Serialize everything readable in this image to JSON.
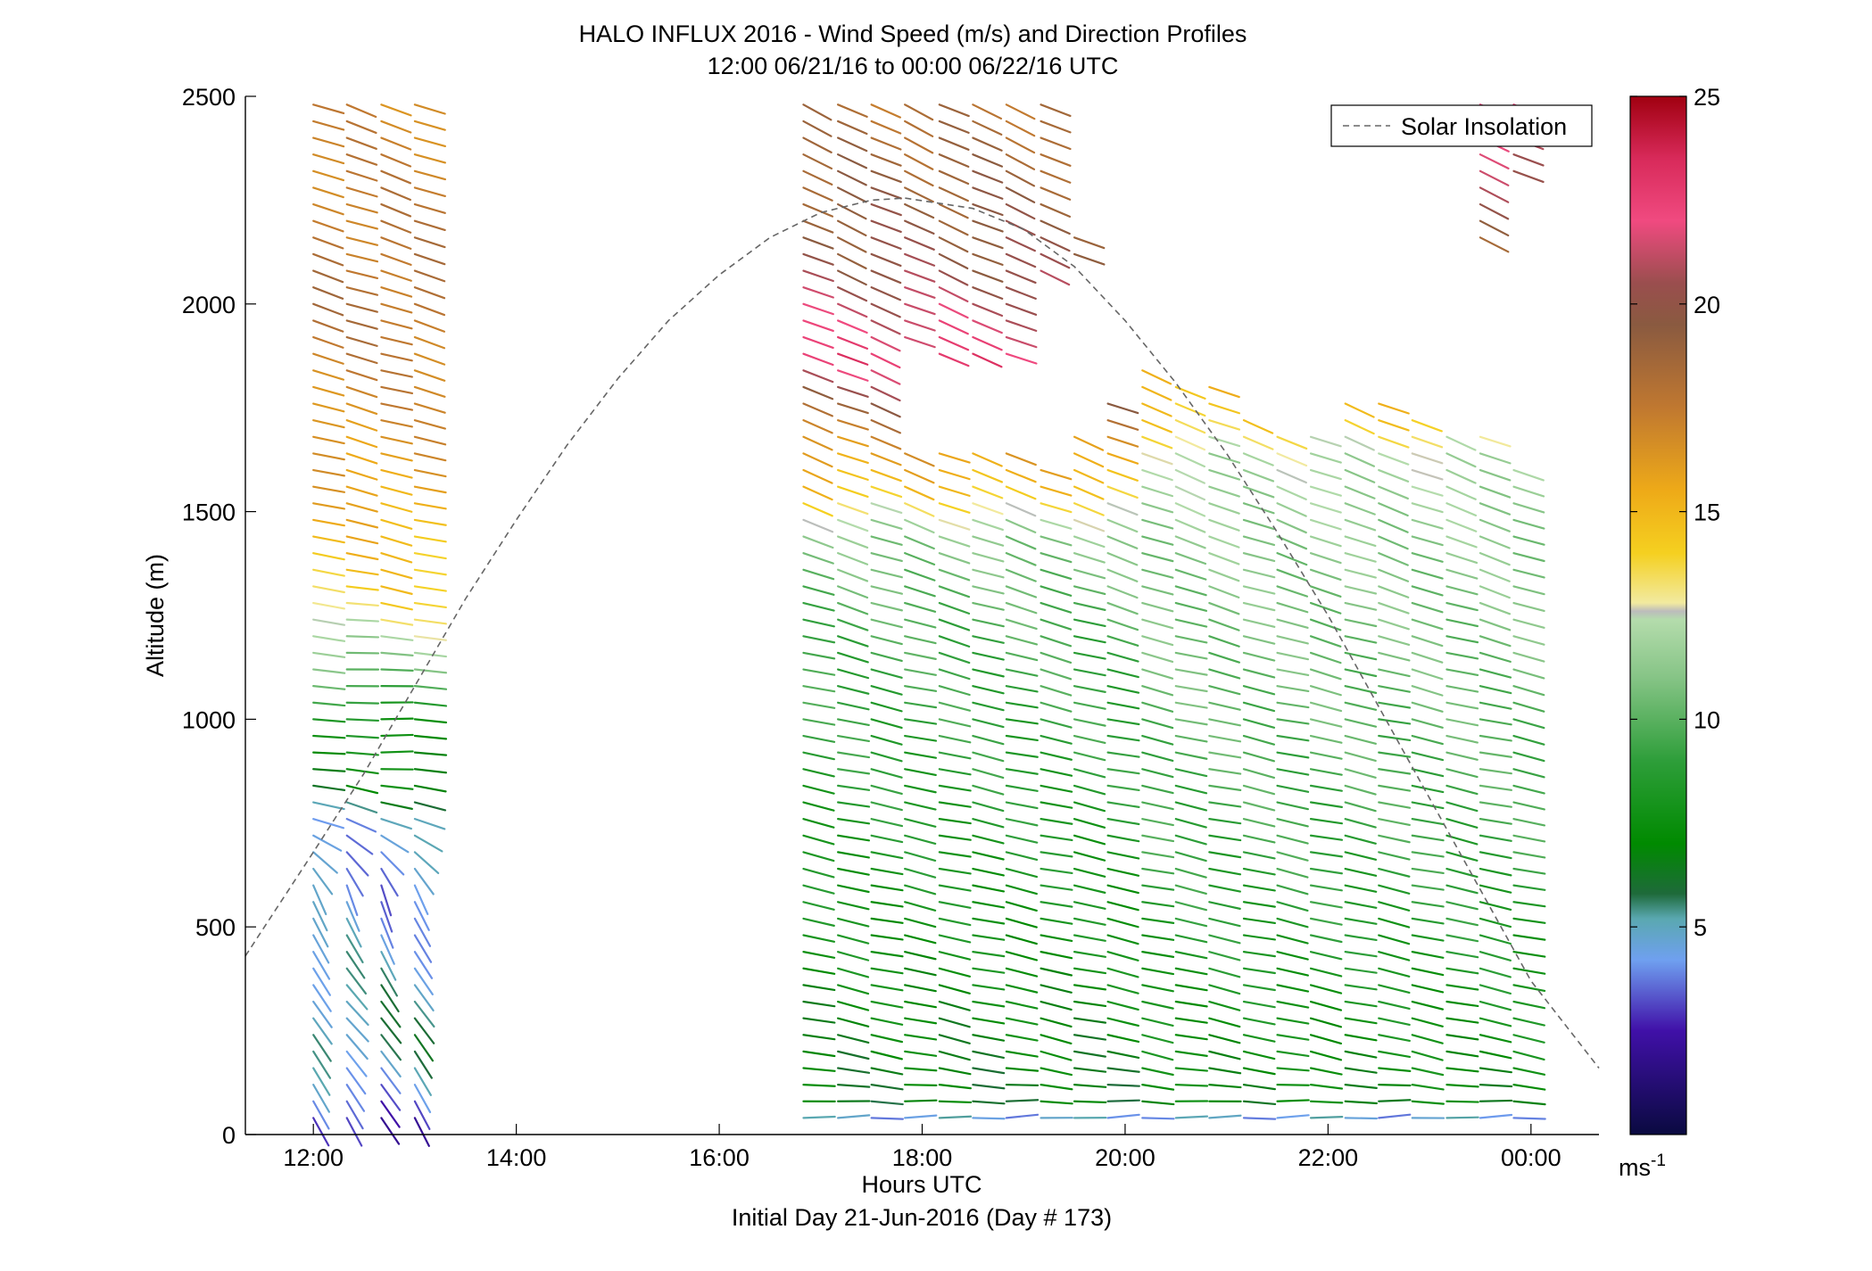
{
  "chart_data": {
    "type": "wind-profile",
    "title": "HALO INFLUX 2016 - Wind Speed (m/s) and Direction Profiles",
    "subtitle": "12:00 06/21/16 to 00:00 06/22/16  UTC",
    "xlabel": "Hours UTC",
    "xlabel2": "Initial Day 21-Jun-2016 (Day # 173)",
    "ylabel": "Altitude (m)",
    "xlim": [
      11.33,
      24.67
    ],
    "ylim": [
      0,
      2500
    ],
    "x_ticks": [
      {
        "value": 12,
        "label": "12:00"
      },
      {
        "value": 14,
        "label": "14:00"
      },
      {
        "value": 16,
        "label": "16:00"
      },
      {
        "value": 18,
        "label": "18:00"
      },
      {
        "value": 20,
        "label": "20:00"
      },
      {
        "value": 22,
        "label": "22:00"
      },
      {
        "value": 24,
        "label": "00:00"
      }
    ],
    "y_ticks": [
      {
        "value": 0,
        "label": "0"
      },
      {
        "value": 500,
        "label": "500"
      },
      {
        "value": 1000,
        "label": "1000"
      },
      {
        "value": 1500,
        "label": "1500"
      },
      {
        "value": 2000,
        "label": "2000"
      },
      {
        "value": 2500,
        "label": "2500"
      }
    ],
    "colorbar": {
      "min": 0,
      "max": 25,
      "ticks": [
        {
          "value": 5,
          "label": "5"
        },
        {
          "value": 10,
          "label": "10"
        },
        {
          "value": 15,
          "label": "15"
        },
        {
          "value": 20,
          "label": "20"
        },
        {
          "value": 25,
          "label": "25"
        }
      ],
      "unit_label": "ms",
      "unit_exponent": "-1",
      "color_stops": [
        {
          "value": 0,
          "color": "#0a0a40"
        },
        {
          "value": 2.5,
          "color": "#4010a8"
        },
        {
          "value": 4.2,
          "color": "#6fa0f0"
        },
        {
          "value": 5.2,
          "color": "#5aa8b0"
        },
        {
          "value": 5.8,
          "color": "#1e6a3a"
        },
        {
          "value": 7,
          "color": "#008a00"
        },
        {
          "value": 9,
          "color": "#2e9e3a"
        },
        {
          "value": 11,
          "color": "#86c486"
        },
        {
          "value": 12.4,
          "color": "#b4dcac"
        },
        {
          "value": 12.6,
          "color": "#bcbcbc"
        },
        {
          "value": 12.8,
          "color": "#f2eaa0"
        },
        {
          "value": 14,
          "color": "#f5d020"
        },
        {
          "value": 15.5,
          "color": "#eeaa18"
        },
        {
          "value": 17.5,
          "color": "#c07830"
        },
        {
          "value": 19.5,
          "color": "#8a5a40"
        },
        {
          "value": 20.5,
          "color": "#9a4e4e"
        },
        {
          "value": 22,
          "color": "#f04a80"
        },
        {
          "value": 23.5,
          "color": "#d82a5a"
        },
        {
          "value": 25,
          "color": "#a00010"
        }
      ]
    },
    "legend": {
      "label": "Solar Insolation",
      "position": "top-right"
    },
    "solar_insolation": {
      "style": "dashed",
      "color": "#666666",
      "points": [
        {
          "time": 11.33,
          "alt": 430
        },
        {
          "time": 12.0,
          "alt": 680
        },
        {
          "time": 12.5,
          "alt": 870
        },
        {
          "time": 13.0,
          "alt": 1080
        },
        {
          "time": 13.5,
          "alt": 1290
        },
        {
          "time": 14.0,
          "alt": 1480
        },
        {
          "time": 14.5,
          "alt": 1660
        },
        {
          "time": 15.0,
          "alt": 1820
        },
        {
          "time": 15.5,
          "alt": 1960
        },
        {
          "time": 16.0,
          "alt": 2070
        },
        {
          "time": 16.5,
          "alt": 2160
        },
        {
          "time": 17.0,
          "alt": 2220
        },
        {
          "time": 17.5,
          "alt": 2250
        },
        {
          "time": 17.83,
          "alt": 2255
        },
        {
          "time": 18.5,
          "alt": 2230
        },
        {
          "time": 19.0,
          "alt": 2180
        },
        {
          "time": 19.5,
          "alt": 2090
        },
        {
          "time": 20.0,
          "alt": 1960
        },
        {
          "time": 20.5,
          "alt": 1810
        },
        {
          "time": 21.0,
          "alt": 1640
        },
        {
          "time": 21.5,
          "alt": 1450
        },
        {
          "time": 22.0,
          "alt": 1250
        },
        {
          "time": 22.5,
          "alt": 1030
        },
        {
          "time": 23.0,
          "alt": 810
        },
        {
          "time": 23.5,
          "alt": 590
        },
        {
          "time": 24.0,
          "alt": 370
        },
        {
          "time": 24.67,
          "alt": 160
        }
      ]
    },
    "vector_length_hours": 0.31,
    "profiles": {
      "times": [
        12.0,
        12.33,
        12.67,
        13.0,
        16.83,
        17.17,
        17.5,
        17.83,
        18.17,
        18.5,
        18.83,
        19.17,
        19.5,
        19.83,
        20.17,
        20.5,
        20.83,
        21.17,
        21.5,
        21.83,
        22.17,
        22.5,
        22.83,
        23.17,
        23.5,
        23.83
      ],
      "altitudes": [
        40,
        80,
        120,
        160,
        200,
        240,
        280,
        320,
        360,
        400,
        440,
        480,
        520,
        560,
        600,
        640,
        680,
        720,
        760,
        800,
        840,
        880,
        920,
        960,
        1000,
        1040,
        1080,
        1120,
        1160,
        1200,
        1240,
        1280,
        1320,
        1360,
        1400,
        1440,
        1480,
        1520,
        1560,
        1600,
        1640,
        1680,
        1720,
        1760,
        1800,
        1840,
        1880,
        1920,
        1960,
        2000,
        2040,
        2080,
        2120,
        2160,
        2200,
        2240,
        2280,
        2320,
        2360,
        2400,
        2440,
        2480
      ],
      "available_ranges": [
        [
          [
            40,
            2500
          ]
        ],
        [
          [
            40,
            2500
          ]
        ],
        [
          [
            40,
            2500
          ]
        ],
        [
          [
            40,
            2500
          ]
        ],
        [
          [
            40,
            2500
          ]
        ],
        [
          [
            40,
            2500
          ]
        ],
        [
          [
            40,
            2500
          ]
        ],
        [
          [
            40,
            1660
          ],
          [
            1920,
            2480
          ]
        ],
        [
          [
            40,
            1660
          ],
          [
            1880,
            2480
          ]
        ],
        [
          [
            40,
            1640
          ],
          [
            1880,
            2480
          ]
        ],
        [
          [
            40,
            1640
          ],
          [
            1880,
            2480
          ]
        ],
        [
          [
            40,
            1600
          ],
          [
            2080,
            2480
          ]
        ],
        [
          [
            40,
            1680
          ],
          [
            2120,
            2160
          ]
        ],
        [
          [
            40,
            1780
          ]
        ],
        [
          [
            40,
            1860
          ]
        ],
        [
          [
            40,
            1800
          ]
        ],
        [
          [
            40,
            1800
          ]
        ],
        [
          [
            40,
            1720
          ]
        ],
        [
          [
            40,
            1700
          ]
        ],
        [
          [
            40,
            1680
          ]
        ],
        [
          [
            40,
            1780
          ]
        ],
        [
          [
            40,
            1760
          ]
        ],
        [
          [
            40,
            1720
          ]
        ],
        [
          [
            40,
            1700
          ]
        ],
        [
          [
            40,
            1700
          ],
          [
            2160,
            2500
          ]
        ],
        [
          [
            40,
            1620
          ],
          [
            2320,
            2500
          ]
        ]
      ],
      "speed_by_altitude": {
        "morning": [
          {
            "alt": 40,
            "speed": 2.5
          },
          {
            "alt": 120,
            "speed": 4.0
          },
          {
            "alt": 240,
            "speed": 5.5
          },
          {
            "alt": 400,
            "speed": 5.0
          },
          {
            "alt": 600,
            "speed": 4.0
          },
          {
            "alt": 760,
            "speed": 4.5
          },
          {
            "alt": 840,
            "speed": 7.0
          },
          {
            "alt": 1000,
            "speed": 8.0
          },
          {
            "alt": 1200,
            "speed": 12.0
          },
          {
            "alt": 1300,
            "speed": 14.0
          },
          {
            "alt": 1600,
            "speed": 16.0
          },
          {
            "alt": 2000,
            "speed": 18.0
          },
          {
            "alt": 2500,
            "speed": 17.0
          }
        ],
        "afternoon": [
          {
            "alt": 40,
            "speed": 4.5
          },
          {
            "alt": 80,
            "speed": 6.5
          },
          {
            "alt": 400,
            "speed": 7.5
          },
          {
            "alt": 800,
            "speed": 8.5
          },
          {
            "alt": 1200,
            "speed": 9.5
          },
          {
            "alt": 1450,
            "speed": 11.0
          },
          {
            "alt": 1560,
            "speed": 14.5
          },
          {
            "alt": 1700,
            "speed": 17.0
          },
          {
            "alt": 1880,
            "speed": 22.5
          },
          {
            "alt": 2100,
            "speed": 20.0
          },
          {
            "alt": 2500,
            "speed": 18.0
          }
        ],
        "evening": [
          {
            "alt": 40,
            "speed": 4.5
          },
          {
            "alt": 80,
            "speed": 7.0
          },
          {
            "alt": 500,
            "speed": 8.5
          },
          {
            "alt": 1000,
            "speed": 10.0
          },
          {
            "alt": 1400,
            "speed": 11.0
          },
          {
            "alt": 1640,
            "speed": 12.0
          },
          {
            "alt": 1720,
            "speed": 14.0
          },
          {
            "alt": 1860,
            "speed": 16.0
          },
          {
            "alt": 2200,
            "speed": 19.0
          },
          {
            "alt": 2500,
            "speed": 23.0
          }
        ]
      },
      "direction_by_altitude": {
        "morning": [
          {
            "alt": 40,
            "dir": 330
          },
          {
            "alt": 300,
            "dir": 320
          },
          {
            "alt": 600,
            "dir": 340
          },
          {
            "alt": 760,
            "dir": 290
          },
          {
            "alt": 900,
            "dir": 272
          },
          {
            "alt": 1100,
            "dir": 272
          },
          {
            "alt": 1400,
            "dir": 283
          },
          {
            "alt": 2500,
            "dir": 290
          }
        ],
        "daytime": [
          {
            "alt": 40,
            "dir": 268
          },
          {
            "alt": 200,
            "dir": 282
          },
          {
            "alt": 1000,
            "dir": 282
          },
          {
            "alt": 1500,
            "dir": 290
          },
          {
            "alt": 2500,
            "dir": 295
          }
        ]
      }
    }
  }
}
